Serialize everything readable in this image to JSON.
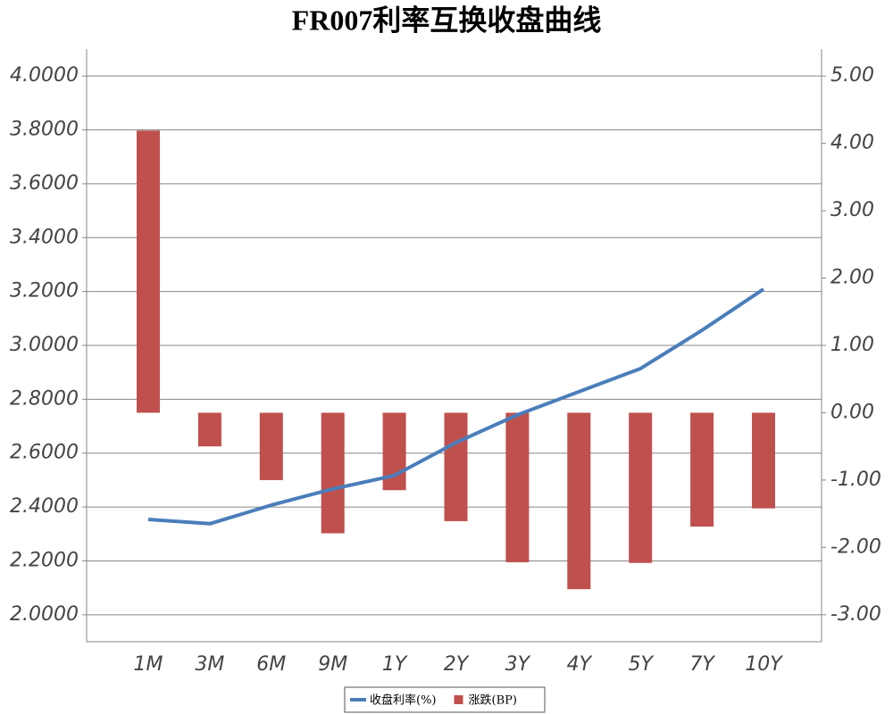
{
  "chart_data": {
    "type": "bar-line",
    "title": "FR007利率互换收盘曲线",
    "categories": [
      "1M",
      "3M",
      "6M",
      "9M",
      "1Y",
      "2Y",
      "3Y",
      "4Y",
      "5Y",
      "7Y",
      "10Y"
    ],
    "series": [
      {
        "name": "收盘利率(%)",
        "type": "line",
        "color": "#4a7ebb",
        "values": [
          2.354,
          2.338,
          2.407,
          2.467,
          2.517,
          2.639,
          2.742,
          2.828,
          2.914,
          3.056,
          3.209
        ]
      },
      {
        "name": "涨跌(BP)",
        "type": "bar",
        "axis": "y2",
        "color": "#c0504d",
        "values": [
          4.19,
          -0.5,
          -1.0,
          -1.79,
          -1.15,
          -1.61,
          -2.22,
          -2.62,
          -2.23,
          -1.69,
          -1.42
        ]
      }
    ],
    "ylim": [
      1.9,
      4.1
    ],
    "yticks": [
      {
        "value": 2,
        "label": "2.0000"
      },
      {
        "value": 2.2,
        "label": "2.2000"
      },
      {
        "value": 2.4,
        "label": "2.4000"
      },
      {
        "value": 2.6,
        "label": "2.6000"
      },
      {
        "value": 2.8,
        "label": "2.8000"
      },
      {
        "value": 3,
        "label": "3.0000"
      },
      {
        "value": 3.2,
        "label": "3.2000"
      },
      {
        "value": 3.4,
        "label": "3.4000"
      },
      {
        "value": 3.6,
        "label": "3.6000"
      },
      {
        "value": 3.8,
        "label": "3.8000"
      },
      {
        "value": 4,
        "label": "4.0000"
      }
    ],
    "y2lim": [
      -3.4,
      5.4
    ],
    "y2ticks": [
      {
        "value": -3,
        "label": "-3.00"
      },
      {
        "value": -2,
        "label": "-2.00"
      },
      {
        "value": -1,
        "label": "-1.00"
      },
      {
        "value": 0,
        "label": "0.00"
      },
      {
        "value": 1,
        "label": "1.00"
      },
      {
        "value": 2,
        "label": "2.00"
      },
      {
        "value": 3,
        "label": "3.00"
      },
      {
        "value": 4,
        "label": "4.00"
      },
      {
        "value": 5,
        "label": "5.00"
      }
    ],
    "grid": true,
    "legend": "bottom"
  }
}
